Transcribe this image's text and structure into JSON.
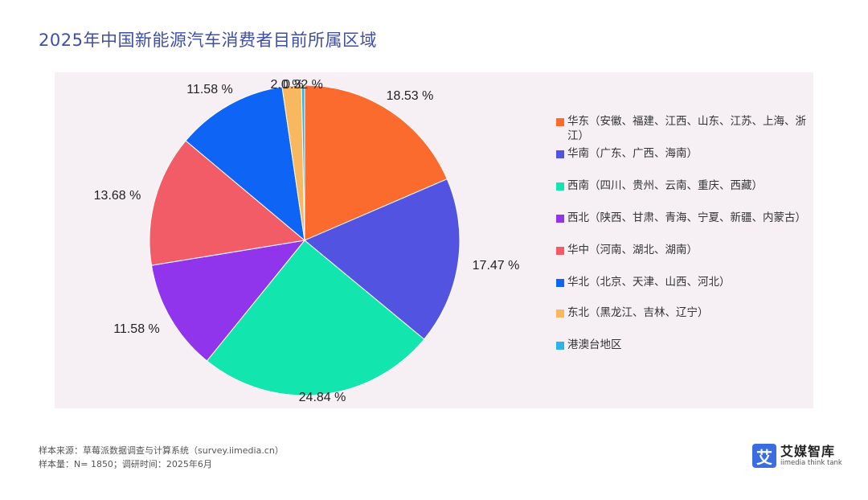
{
  "title": "2025年中国新能源汽车消费者目前所属区域",
  "chart_data": {
    "type": "pie",
    "categories": [
      "华东（安徽、福建、江西、山东、江苏、上海、浙江）",
      "华南（广东、广西、海南）",
      "西南（四川、贵州、云南、重庆、西藏）",
      "西北（陕西、甘肃、青海、宁夏、新疆、内蒙古）",
      "华中（河南、湖北、湖南）",
      "华北（北京、天津、山西、河北）",
      "东北（黑龙江、吉林、辽宁）",
      "港澳台地区"
    ],
    "values": [
      18.53,
      17.47,
      24.84,
      11.58,
      13.68,
      11.58,
      2.0,
      0.32
    ],
    "labels": [
      "18.53 %",
      "17.47 %",
      "24.84 %",
      "11.58 %",
      "13.68 %",
      "11.58 %",
      "2.0 %",
      "0.32 %"
    ],
    "colors": [
      "#fb6b2e",
      "#5253e0",
      "#12e5ad",
      "#9135ec",
      "#f25c66",
      "#0d64f5",
      "#f8b860",
      "#2eb3e6"
    ],
    "legend_position": "right"
  },
  "legend": [
    {
      "label": "华东（安徽、福建、江西、山东、江苏、上海、浙江）",
      "color": "#fb6b2e"
    },
    {
      "label": "华南（广东、广西、海南）",
      "color": "#5253e0"
    },
    {
      "label": "西南（四川、贵州、云南、重庆、西藏）",
      "color": "#12e5ad"
    },
    {
      "label": "西北（陕西、甘肃、青海、宁夏、新疆、内蒙古）",
      "color": "#9135ec"
    },
    {
      "label": "华中（河南、湖北、湖南）",
      "color": "#f25c66"
    },
    {
      "label": "华北（北京、天津、山西、河北）",
      "color": "#0d64f5"
    },
    {
      "label": "东北（黑龙江、吉林、辽宁）",
      "color": "#f8b860"
    },
    {
      "label": "港澳台地区",
      "color": "#2eb3e6"
    }
  ],
  "footer": {
    "source": "样本来源：草莓派数据调查与计算系统（survey.iimedia.cn）",
    "sample": "样本量：N= 1850；调研时间：2025年6月"
  },
  "logo": {
    "mark": "艾",
    "name": "艾媒智库",
    "subtitle": "iimedia think tank"
  }
}
